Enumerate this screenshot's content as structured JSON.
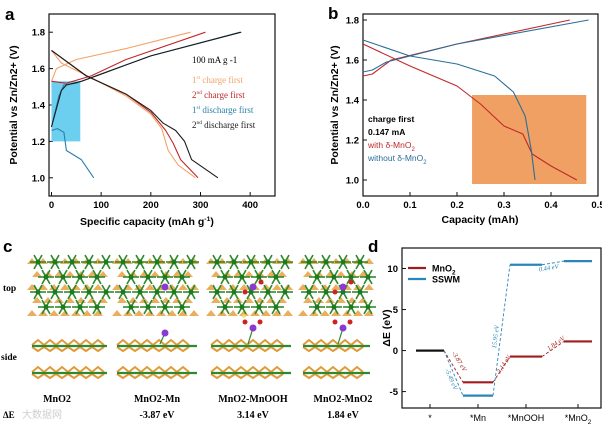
{
  "panels": {
    "a": "a",
    "b": "b",
    "c": "c",
    "d": "d"
  },
  "chart_data": [
    {
      "id": "a",
      "type": "line",
      "xlabel": "Specific capacity (mAh g-1)",
      "ylabel": "Potential vs Zn/Zn2+ (V)",
      "xlim": [
        -5,
        450
      ],
      "ylim": [
        0.9,
        1.9
      ],
      "xticks": [
        0,
        100,
        200,
        300,
        400
      ],
      "yticks": [
        1.0,
        1.2,
        1.4,
        1.6,
        1.8
      ],
      "legend_title": "100 mA g -1",
      "legend_placement": "right",
      "highlight": {
        "x": [
          0,
          58
        ],
        "y": [
          1.2,
          1.53
        ],
        "color": "#6ccff0"
      },
      "series": [
        {
          "name": "1st charge first",
          "color": "#f2a468",
          "segments": [
            [
              [
                0,
                1.53
              ],
              [
                10,
                1.6
              ],
              [
                50,
                1.65
              ],
              [
                150,
                1.71
              ],
              [
                280,
                1.8
              ]
            ],
            [
              [
                0,
                1.7
              ],
              [
                20,
                1.63
              ],
              [
                80,
                1.55
              ],
              [
                150,
                1.45
              ],
              [
                200,
                1.35
              ],
              [
                222,
                1.27
              ],
              [
                235,
                1.15
              ],
              [
                255,
                1.07
              ],
              [
                290,
                1.0
              ]
            ]
          ]
        },
        {
          "name": "2nd charge first",
          "color": "#c0282c",
          "segments": [
            [
              [
                0,
                1.53
              ],
              [
                30,
                1.52
              ],
              [
                80,
                1.56
              ],
              [
                150,
                1.65
              ],
              [
                310,
                1.8
              ]
            ],
            [
              [
                0,
                1.7
              ],
              [
                70,
                1.56
              ],
              [
                150,
                1.46
              ],
              [
                200,
                1.36
              ],
              [
                230,
                1.26
              ],
              [
                245,
                1.19
              ],
              [
                260,
                1.1
              ],
              [
                295,
                1.0
              ]
            ]
          ]
        },
        {
          "name": "1st discharge first",
          "color": "#2a7fa8",
          "segments": [
            [
              [
                0,
                1.26
              ],
              [
                12,
                1.27
              ],
              [
                25,
                1.25
              ],
              [
                30,
                1.15
              ],
              [
                60,
                1.1
              ],
              [
                85,
                1.0
              ]
            ],
            [
              [
                0,
                1.28
              ],
              [
                15,
                1.45
              ],
              [
                25,
                1.51
              ],
              [
                50,
                1.52
              ],
              [
                100,
                1.57
              ],
              [
                200,
                1.67
              ],
              [
                380,
                1.8
              ]
            ]
          ]
        },
        {
          "name": "2nd discharge first",
          "color": "#1c1c1c",
          "segments": [
            [
              [
                0,
                1.28
              ],
              [
                20,
                1.48
              ],
              [
                30,
                1.51
              ],
              [
                60,
                1.53
              ],
              [
                100,
                1.57
              ],
              [
                200,
                1.67
              ],
              [
                382,
                1.8
              ]
            ],
            [
              [
                0,
                1.7
              ],
              [
                70,
                1.56
              ],
              [
                150,
                1.46
              ],
              [
                200,
                1.37
              ],
              [
                225,
                1.3
              ],
              [
                250,
                1.26
              ],
              [
                268,
                1.2
              ],
              [
                282,
                1.1
              ],
              [
                335,
                1.0
              ]
            ]
          ]
        }
      ]
    },
    {
      "id": "b",
      "type": "line",
      "xlabel": "Capacity (mAh)",
      "ylabel": "Potential vs Zn/Zn2+ (V)",
      "xlim": [
        0,
        0.5
      ],
      "ylim": [
        0.92,
        1.83
      ],
      "xticks": [
        0.0,
        0.1,
        0.2,
        0.3,
        0.4,
        0.5
      ],
      "yticks": [
        1.0,
        1.2,
        1.4,
        1.6,
        1.8
      ],
      "annotation": [
        "charge first",
        "0.147 mA"
      ],
      "highlight": {
        "x": [
          0.232,
          0.475
        ],
        "y": [
          0.98,
          1.425
        ],
        "color": "#f0a062"
      },
      "series": [
        {
          "name": "with δ-MnO2",
          "color": "#c0282c",
          "segments": [
            [
              [
                0,
                1.52
              ],
              [
                0.02,
                1.53
              ],
              [
                0.06,
                1.6
              ],
              [
                0.2,
                1.68
              ],
              [
                0.44,
                1.8
              ]
            ],
            [
              [
                0,
                1.68
              ],
              [
                0.1,
                1.57
              ],
              [
                0.2,
                1.47
              ],
              [
                0.25,
                1.38
              ],
              [
                0.3,
                1.27
              ],
              [
                0.34,
                1.23
              ],
              [
                0.36,
                1.13
              ],
              [
                0.4,
                1.07
              ],
              [
                0.455,
                1.0
              ]
            ]
          ]
        },
        {
          "name": "without δ-MnO2",
          "color": "#2a6f98",
          "segments": [
            [
              [
                0,
                1.54
              ],
              [
                0.02,
                1.55
              ],
              [
                0.05,
                1.59
              ],
              [
                0.2,
                1.68
              ],
              [
                0.48,
                1.8
              ]
            ],
            [
              [
                0,
                1.7
              ],
              [
                0.1,
                1.62
              ],
              [
                0.2,
                1.58
              ],
              [
                0.28,
                1.52
              ],
              [
                0.32,
                1.44
              ],
              [
                0.345,
                1.32
              ],
              [
                0.358,
                1.15
              ],
              [
                0.366,
                1.0
              ]
            ]
          ]
        }
      ]
    },
    {
      "id": "d",
      "type": "line",
      "ylabel": "ΔE (eV)",
      "ylim": [
        -7,
        12.5
      ],
      "yticks": [
        -5,
        0,
        5,
        10
      ],
      "categories": [
        "*",
        "*Mn",
        "*MnOOH",
        "*MnO2"
      ],
      "legend_placement": "top-left",
      "series": [
        {
          "name": "MnO2",
          "color": "#a01c1c",
          "values": [
            0,
            -3.87,
            -0.73,
            1.11
          ],
          "step_labels": [
            "-3.87 eV",
            "3.14 eV",
            "1.84 eV"
          ]
        },
        {
          "name": "SSWM",
          "color": "#2a86b8",
          "values": [
            0,
            -5.49,
            10.46,
            10.9
          ],
          "step_labels": [
            "-5.49 eV",
            "15.95 eV",
            "0.44 eV"
          ]
        }
      ]
    }
  ],
  "panel_c": {
    "row_labels": [
      "top",
      "side"
    ],
    "columns": [
      {
        "name": "MnO2",
        "energy": ""
      },
      {
        "name": "MnO2-Mn",
        "energy": "-3.87  eV"
      },
      {
        "name": "MnO2-MnOOH",
        "energy": "3.14 eV"
      },
      {
        "name": "MnO2-MnO2",
        "energy": "1.84 eV"
      }
    ],
    "delta_label": "ΔE"
  },
  "watermark": "大数据网"
}
